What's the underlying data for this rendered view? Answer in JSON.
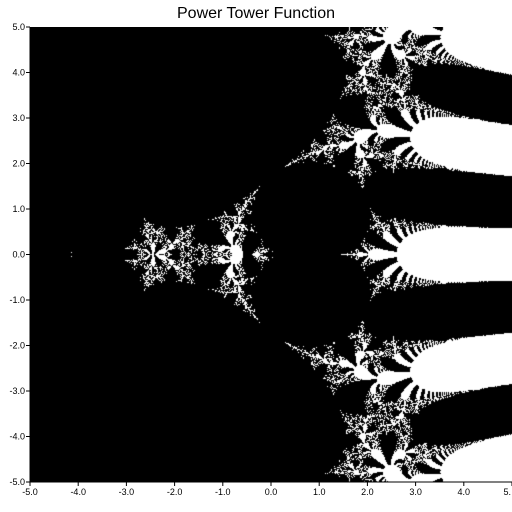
{
  "chart_data": {
    "type": "heatmap",
    "title": "Power Tower Function",
    "xlabel": "",
    "ylabel": "",
    "xlim": [
      -5.0,
      5.0
    ],
    "ylim": [
      -5.0,
      5.0
    ],
    "x_ticks": [
      -5.0,
      -4.0,
      -3.0,
      -2.0,
      -1.0,
      0.0,
      1.0,
      2.0,
      3.0,
      4.0,
      5.0
    ],
    "x_tick_labels": [
      "-5.0",
      "-4.0",
      "-3.0",
      "-2.0",
      "-1.0",
      "0.0",
      "1.0",
      "2.0",
      "3.0",
      "4.0",
      "5."
    ],
    "y_ticks": [
      5.0,
      4.0,
      3.0,
      2.0,
      1.0,
      0.0,
      -1.0,
      -2.0,
      -3.0,
      -4.0,
      -5.0
    ],
    "y_tick_labels": [
      "5.0",
      "4.0",
      "3.0",
      "2.0",
      "1.0",
      "0.0",
      "-1.0",
      "-2.0",
      "-3.0",
      "-4.0",
      "-5.0"
    ],
    "colors": {
      "convergent": "#000000",
      "divergent": "#ffffff",
      "background": "#ffffff",
      "axis": "#000000"
    },
    "grid": false,
    "legend": "none"
  }
}
